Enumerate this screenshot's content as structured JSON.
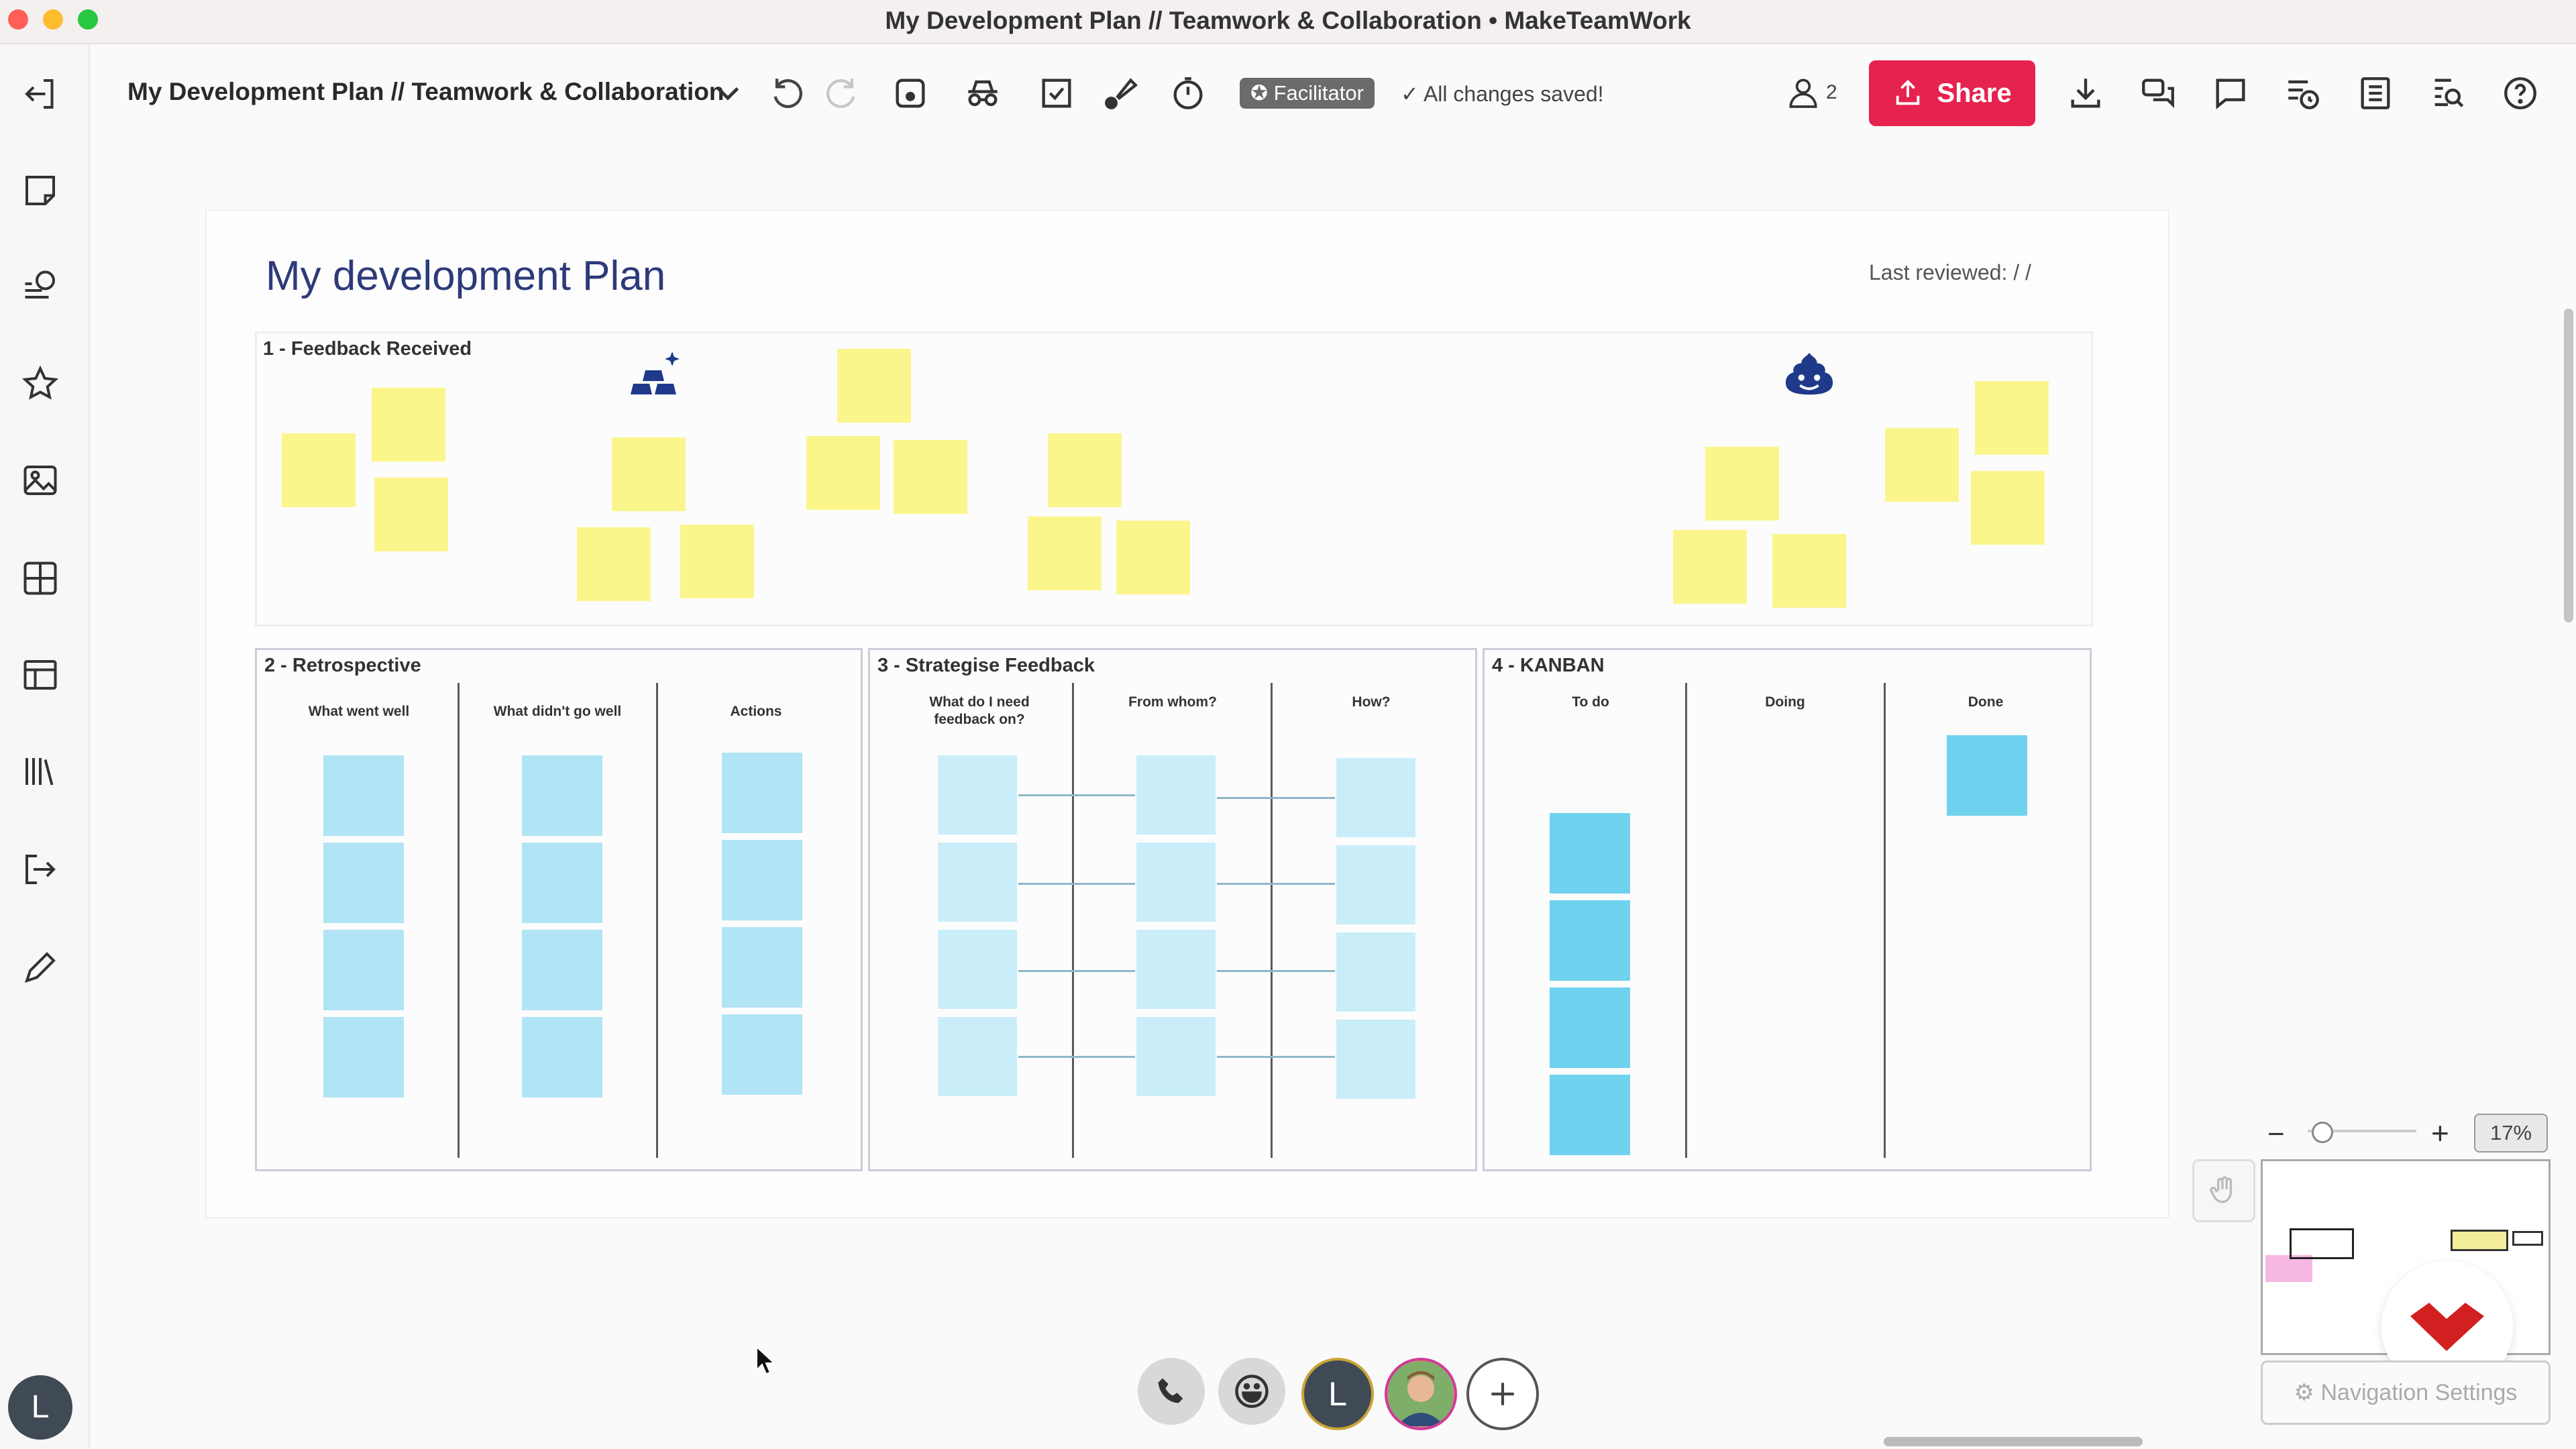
{
  "window": {
    "title": "My Development Plan // Teamwork & Collaboration • MakeTeamWork"
  },
  "toolbar": {
    "board_title": "My Development Plan // Teamwork & Collaboration",
    "facilitator_label": "Facilitator",
    "saved_status": "All changes saved!",
    "participants_count": "2",
    "share_label": "Share"
  },
  "sidebar": {
    "items": [
      "exit-icon",
      "sticky-note-icon",
      "comment-board-icon",
      "star-icon",
      "image-icon",
      "grid-icon",
      "table-icon",
      "library-icon",
      "export-icon",
      "pen-icon"
    ],
    "user_initial": "L"
  },
  "board": {
    "title": "My development Plan",
    "last_reviewed": "Last reviewed:   /   /"
  },
  "sections": {
    "feedback": {
      "title": "1 - Feedback Received"
    },
    "retro": {
      "title": "2 - Retrospective",
      "columns": [
        "What went well",
        "What didn't go well",
        "Actions"
      ]
    },
    "strategise": {
      "title": "3 - Strategise Feedback",
      "columns": [
        "What do I need feedback on?",
        "From whom?",
        "How?"
      ]
    },
    "kanban": {
      "title": "4 - KANBAN",
      "columns": [
        "To do",
        "Doing",
        "Done"
      ]
    }
  },
  "zoom": {
    "level": "17%"
  },
  "navigation": {
    "settings_label": "Navigation Settings"
  },
  "bottom_bar": {
    "user_initial": "L"
  },
  "colors": {
    "accent": "#e6224f",
    "title_blue": "#2d3a7a",
    "sticky_yellow": "#fbf68c",
    "sticky_blue": "#b1e4f5",
    "sticky_cyan": "#6fd2ee"
  }
}
